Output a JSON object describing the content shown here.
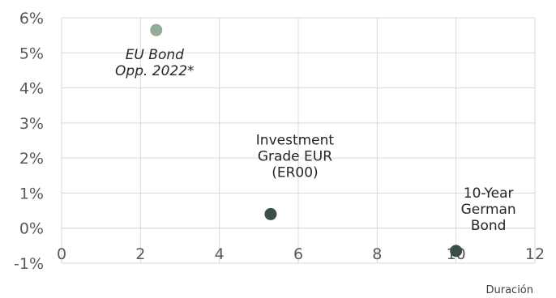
{
  "chart_data": {
    "type": "scatter",
    "title": "",
    "xlabel": "Duración",
    "ylabel": "",
    "xlim": [
      0,
      12
    ],
    "ylim": [
      -0.01,
      0.06
    ],
    "x_ticks": [
      0,
      2,
      4,
      6,
      8,
      10,
      12
    ],
    "x_tick_labels": [
      "0",
      "2",
      "4",
      "6",
      "8",
      "10",
      "12"
    ],
    "y_ticks": [
      -0.01,
      0,
      0.01,
      0.02,
      0.03,
      0.04,
      0.05,
      0.06
    ],
    "y_tick_labels": [
      "-1%",
      "0%",
      "1%",
      "2%",
      "3%",
      "4%",
      "5%",
      "6%"
    ],
    "grid": true,
    "legend": "none",
    "points": [
      {
        "label_lines": [
          "EU Bond",
          "Opp. 2022*"
        ],
        "x": 2.4,
        "y": 0.0565,
        "color": "#93ab9b",
        "label_style": "italic"
      },
      {
        "label_lines": [
          "Investment",
          "Grade EUR",
          "(ER00)"
        ],
        "x": 5.3,
        "y": 0.004,
        "color": "#3a5046",
        "label_style": "normal"
      },
      {
        "label_lines": [
          "10-Year",
          "German",
          "Bond"
        ],
        "x": 10.0,
        "y": -0.0065,
        "color": "#3a5046",
        "label_style": "normal"
      }
    ]
  }
}
